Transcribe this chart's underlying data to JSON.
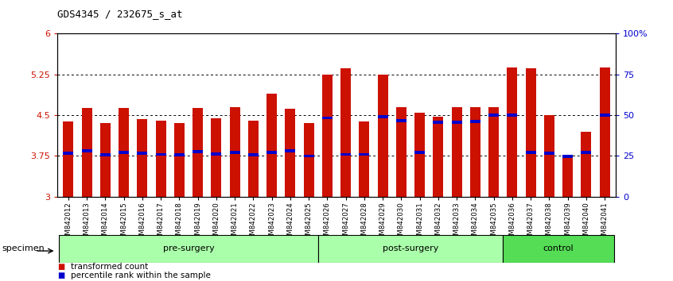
{
  "title": "GDS4345 / 232675_s_at",
  "samples": [
    "GSM842012",
    "GSM842013",
    "GSM842014",
    "GSM842015",
    "GSM842016",
    "GSM842017",
    "GSM842018",
    "GSM842019",
    "GSM842020",
    "GSM842021",
    "GSM842022",
    "GSM842023",
    "GSM842024",
    "GSM842025",
    "GSM842026",
    "GSM842027",
    "GSM842028",
    "GSM842029",
    "GSM842030",
    "GSM842031",
    "GSM842032",
    "GSM842033",
    "GSM842034",
    "GSM842035",
    "GSM842036",
    "GSM842037",
    "GSM842038",
    "GSM842039",
    "GSM842040",
    "GSM842041"
  ],
  "bar_values": [
    4.38,
    4.63,
    4.35,
    4.63,
    4.43,
    4.4,
    4.35,
    4.63,
    4.45,
    4.65,
    4.4,
    4.9,
    4.62,
    4.35,
    5.25,
    5.37,
    4.38,
    5.25,
    4.65,
    4.55,
    4.48,
    4.65,
    4.65,
    4.65,
    5.38,
    5.37,
    4.5,
    3.72,
    4.2,
    5.38
  ],
  "percentile_values": [
    3.8,
    3.85,
    3.77,
    3.82,
    3.8,
    3.78,
    3.77,
    3.83,
    3.79,
    3.82,
    3.77,
    3.82,
    3.84,
    3.75,
    4.45,
    3.78,
    3.78,
    4.47,
    4.4,
    3.82,
    4.37,
    4.37,
    4.38,
    4.5,
    4.5,
    3.82,
    3.8,
    3.74,
    3.82,
    4.5
  ],
  "groups": [
    {
      "label": "pre-surgery",
      "start": 0,
      "end": 14,
      "light": true
    },
    {
      "label": "post-surgery",
      "start": 14,
      "end": 24,
      "light": true
    },
    {
      "label": "control",
      "start": 24,
      "end": 30,
      "light": false
    }
  ],
  "group_color_light": "#aaffaa",
  "group_color_dark": "#55dd55",
  "bar_color": "#cc1100",
  "percentile_color": "#0000cc",
  "ymin": 3.0,
  "ymax": 6.0,
  "ytick_positions": [
    3.0,
    3.75,
    4.5,
    5.25,
    6.0
  ],
  "ytick_labels_left": [
    "3",
    "3.75",
    "4.5",
    "5.25",
    "6"
  ],
  "ytick_labels_right": [
    "0",
    "25",
    "50",
    "75",
    "100%"
  ],
  "grid_values": [
    3.75,
    4.5,
    5.25
  ],
  "legend_entries": [
    "transformed count",
    "percentile rank within the sample"
  ],
  "legend_colors": [
    "#cc1100",
    "#0000cc"
  ],
  "specimen_label": "specimen",
  "ax_bg": "#ffffff",
  "title_fontsize": 9,
  "bar_width": 0.55
}
